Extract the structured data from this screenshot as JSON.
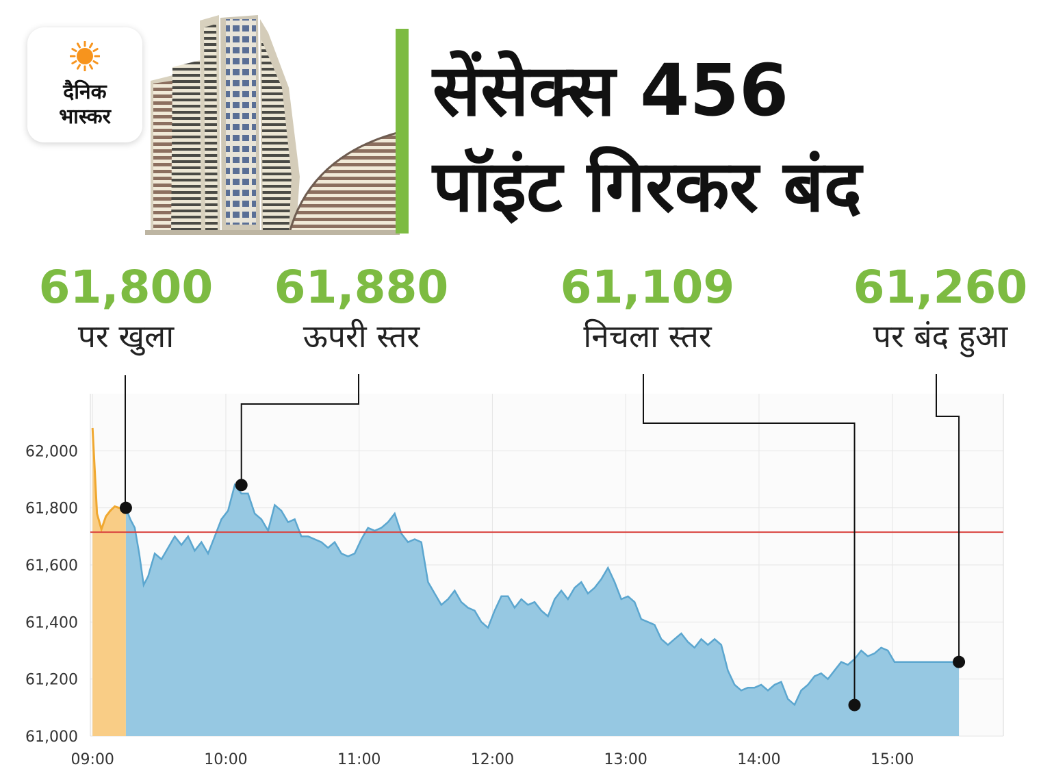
{
  "logo": {
    "line1": "दैनिक",
    "line2": "भास्कर",
    "colors": {
      "sun": "#f7941d",
      "text": "#111111"
    }
  },
  "headline": {
    "line1": "सेंसेक्स 456",
    "line2": "पॉइंट गिरकर बंद"
  },
  "callouts": [
    {
      "value": "61,800",
      "label": "पर खुला"
    },
    {
      "value": "61,880",
      "label": "ऊपरी स्तर"
    },
    {
      "value": "61,109",
      "label": "निचला स्तर"
    },
    {
      "value": "61,260",
      "label": "पर बंद हुआ"
    }
  ],
  "colors": {
    "accent_green": "#7dbb42",
    "area_fill": "#96c8e2",
    "area_line": "#5ba6cf",
    "preopen_fill": "#f9cd86",
    "preopen_line": "#f0a830",
    "reference_line": "#d9423e"
  },
  "chart_data": {
    "type": "area",
    "x_ticks": [
      "09:00",
      "10:00",
      "11:00",
      "12:00",
      "13:00",
      "14:00",
      "15:00"
    ],
    "y_ticks": [
      "62,000",
      "61,800",
      "61,600",
      "61,400",
      "61,200",
      "61,000"
    ],
    "ylim": [
      61000,
      62200
    ],
    "reference_line": 61715,
    "grid": true,
    "pre_open": {
      "x": [
        "09:00",
        "09:02",
        "09:04",
        "09:06",
        "09:08",
        "09:10",
        "09:12",
        "09:14",
        "09:15"
      ],
      "y": [
        62080,
        61780,
        61725,
        61770,
        61790,
        61805,
        61800,
        61800,
        61800
      ]
    },
    "series": [
      {
        "x": [
          "09:15",
          "09:17",
          "09:19",
          "09:21",
          "09:23",
          "09:25",
          "09:28",
          "09:31",
          "09:34",
          "09:37",
          "09:40",
          "09:43",
          "09:46",
          "09:49",
          "09:52",
          "09:55",
          "09:58",
          "10:01",
          "10:04",
          "10:07",
          "10:10",
          "10:13",
          "10:16",
          "10:19",
          "10:22",
          "10:25",
          "10:28",
          "10:31",
          "10:34",
          "10:37",
          "10:40",
          "10:43",
          "10:46",
          "10:49",
          "10:52",
          "10:55",
          "10:58",
          "11:01",
          "11:04",
          "11:07",
          "11:10",
          "11:13",
          "11:16",
          "11:19",
          "11:22",
          "11:25",
          "11:28",
          "11:31",
          "11:34",
          "11:37",
          "11:40",
          "11:43",
          "11:46",
          "11:49",
          "11:52",
          "11:55",
          "11:58",
          "12:01",
          "12:04",
          "12:07",
          "12:10",
          "12:13",
          "12:16",
          "12:19",
          "12:22",
          "12:25",
          "12:28",
          "12:31",
          "12:34",
          "12:37",
          "12:40",
          "12:43",
          "12:46",
          "12:49",
          "12:52",
          "12:55",
          "12:58",
          "13:01",
          "13:04",
          "13:07",
          "13:10",
          "13:13",
          "13:16",
          "13:19",
          "13:22",
          "13:25",
          "13:28",
          "13:31",
          "13:34",
          "13:37",
          "13:40",
          "13:43",
          "13:46",
          "13:49",
          "13:52",
          "13:55",
          "13:58",
          "14:01",
          "14:04",
          "14:07",
          "14:10",
          "14:13",
          "14:16",
          "14:19",
          "14:22",
          "14:25",
          "14:28",
          "14:31",
          "14:34",
          "14:37",
          "14:40",
          "14:43",
          "14:46",
          "14:49",
          "14:52",
          "14:55",
          "14:58",
          "15:01",
          "15:04",
          "15:07",
          "15:10",
          "15:13",
          "15:16",
          "15:19",
          "15:22",
          "15:25",
          "15:28",
          "15:30"
        ],
        "y": [
          61800,
          61760,
          61730,
          61640,
          61530,
          61560,
          61640,
          61620,
          61660,
          61700,
          61670,
          61700,
          61650,
          61680,
          61640,
          61700,
          61760,
          61790,
          61880,
          61850,
          61850,
          61780,
          61760,
          61720,
          61810,
          61790,
          61750,
          61760,
          61700,
          61700,
          61690,
          61680,
          61660,
          61680,
          61640,
          61630,
          61640,
          61690,
          61730,
          61720,
          61730,
          61750,
          61780,
          61710,
          61680,
          61690,
          61680,
          61540,
          61500,
          61460,
          61480,
          61510,
          61470,
          61450,
          61440,
          61400,
          61380,
          61440,
          61490,
          61490,
          61450,
          61480,
          61460,
          61470,
          61440,
          61420,
          61480,
          61510,
          61480,
          61520,
          61540,
          61500,
          61520,
          61550,
          61590,
          61540,
          61480,
          61490,
          61470,
          61410,
          61400,
          61390,
          61340,
          61320,
          61340,
          61360,
          61330,
          61310,
          61340,
          61320,
          61340,
          61320,
          61230,
          61180,
          61160,
          61170,
          61170,
          61180,
          61160,
          61180,
          61190,
          61130,
          61110,
          61160,
          61180,
          61210,
          61220,
          61200,
          61230,
          61260,
          61250,
          61270,
          61300,
          61280,
          61290,
          61310,
          61300,
          61260,
          61260,
          61260,
          61260,
          61260,
          61260,
          61260,
          61260,
          61260,
          61260,
          61260
        ]
      }
    ],
    "markers": [
      {
        "time": "09:15",
        "value": 61800
      },
      {
        "time": "10:07",
        "value": 61880
      },
      {
        "time": "14:43",
        "value": 61109
      },
      {
        "time": "15:30",
        "value": 61260
      }
    ]
  }
}
